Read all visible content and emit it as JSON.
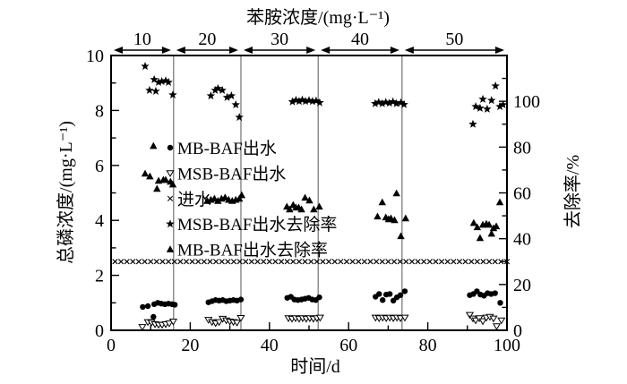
{
  "chart_data": {
    "type": "scatter",
    "title": "",
    "top_axis": {
      "label": "苯胺浓度/(mg·L⁻¹)",
      "segments": [
        {
          "label": "10",
          "day_start": 0,
          "day_end": 15.8
        },
        {
          "label": "20",
          "day_start": 15.8,
          "day_end": 32.8
        },
        {
          "label": "30",
          "day_start": 32.8,
          "day_end": 52.3
        },
        {
          "label": "40",
          "day_start": 52.3,
          "day_end": 73.5
        },
        {
          "label": "50",
          "day_start": 73.5,
          "day_end": 100
        }
      ]
    },
    "bottom_axis": {
      "label": "时间/d",
      "min": 0,
      "max": 100,
      "major_ticks": [
        0,
        20,
        40,
        60,
        80,
        100
      ],
      "minor_ticks": [
        10,
        30,
        50,
        70,
        90
      ]
    },
    "left_axis": {
      "label": "总磷浓度/(mg·L⁻¹)",
      "min": 0,
      "max": 10,
      "major_ticks": [
        0,
        2,
        4,
        6,
        8,
        10
      ],
      "minor_ticks": [
        1,
        3,
        5,
        7,
        9
      ]
    },
    "right_axis": {
      "label": "去除率/%",
      "min": 0,
      "max": 120,
      "major_ticks": [
        0,
        20,
        40,
        60,
        80,
        100
      ],
      "minor_ticks": [
        10,
        30,
        50,
        70,
        90,
        110
      ]
    },
    "phase_boundaries_days": [
      15.8,
      32.8,
      52.3,
      73.5
    ],
    "grid": false,
    "legend": {
      "position": "inside-left",
      "items": [
        {
          "marker": "circle-filled",
          "label": "MB-BAF出水"
        },
        {
          "marker": "triangle-down-open",
          "label": "MSB-BAF出水"
        },
        {
          "marker": "x-cross",
          "label": "进水"
        },
        {
          "marker": "star-filled",
          "label": "MSB-BAF出水去除率"
        },
        {
          "marker": "triangle-up-filled",
          "label": "MB-BAF出水去除率"
        }
      ]
    },
    "series": [
      {
        "name": "进水",
        "marker": "x-cross",
        "axis": "left",
        "uniform": {
          "day_min": 1,
          "day_max": 100,
          "day_step": 1.5,
          "value": 2.5
        }
      },
      {
        "name": "MB-BAF出水",
        "marker": "circle-filled",
        "axis": "left",
        "points": [
          [
            8,
            0.85
          ],
          [
            9.3,
            0.88
          ],
          [
            10.7,
            0.49
          ],
          [
            10.9,
            0.95
          ],
          [
            11.8,
            1.0
          ],
          [
            12.7,
            0.97
          ],
          [
            13.6,
            0.95
          ],
          [
            14.5,
            0.97
          ],
          [
            15.4,
            0.95
          ],
          [
            16.1,
            0.93
          ],
          [
            24.6,
            1.02
          ],
          [
            25.5,
            1.06
          ],
          [
            26.4,
            1.1
          ],
          [
            27.3,
            1.08
          ],
          [
            28.2,
            1.1
          ],
          [
            29.1,
            1.06
          ],
          [
            30,
            1.08
          ],
          [
            30.9,
            1.1
          ],
          [
            31.8,
            1.08
          ],
          [
            32.8,
            1.12
          ],
          [
            44.5,
            1.18
          ],
          [
            45.4,
            1.22
          ],
          [
            46.3,
            1.12
          ],
          [
            47.2,
            1.1
          ],
          [
            48.1,
            1.12
          ],
          [
            49,
            1.15
          ],
          [
            49.9,
            1.18
          ],
          [
            50.8,
            1.12
          ],
          [
            51.7,
            1.1
          ],
          [
            52.6,
            1.2
          ],
          [
            66.8,
            1.22
          ],
          [
            67.7,
            1.32
          ],
          [
            68.6,
            1.1
          ],
          [
            69.5,
            1.3
          ],
          [
            70.4,
            1.32
          ],
          [
            71.3,
            1.08
          ],
          [
            72.2,
            1.2
          ],
          [
            73.1,
            1.28
          ],
          [
            74.2,
            1.42
          ],
          [
            90.6,
            1.28
          ],
          [
            91.5,
            1.32
          ],
          [
            92.4,
            1.42
          ],
          [
            93.3,
            1.3
          ],
          [
            94.2,
            1.26
          ],
          [
            95.1,
            1.35
          ],
          [
            96,
            1.32
          ],
          [
            97,
            1.35
          ],
          [
            98.3,
            1.0
          ]
        ]
      },
      {
        "name": "MSB-BAF出水",
        "marker": "triangle-down-open",
        "axis": "left",
        "points": [
          [
            7.9,
            0.12
          ],
          [
            9.3,
            0.3
          ],
          [
            10.2,
            0.28
          ],
          [
            11.1,
            0.22
          ],
          [
            12,
            0.2
          ],
          [
            12.9,
            0.2
          ],
          [
            13.8,
            0.22
          ],
          [
            14.7,
            0.25
          ],
          [
            15.7,
            0.32
          ],
          [
            24.6,
            0.38
          ],
          [
            25.5,
            0.3
          ],
          [
            26.4,
            0.26
          ],
          [
            27.3,
            0.3
          ],
          [
            28.2,
            0.42
          ],
          [
            29.1,
            0.36
          ],
          [
            30,
            0.32
          ],
          [
            30.9,
            0.3
          ],
          [
            31.8,
            0.28
          ],
          [
            32.8,
            0.45
          ],
          [
            44.8,
            0.44
          ],
          [
            45.7,
            0.42
          ],
          [
            46.6,
            0.44
          ],
          [
            47.5,
            0.42
          ],
          [
            48.4,
            0.44
          ],
          [
            49.3,
            0.42
          ],
          [
            50.2,
            0.44
          ],
          [
            51.1,
            0.42
          ],
          [
            52,
            0.44
          ],
          [
            52.8,
            0.46
          ],
          [
            66.8,
            0.46
          ],
          [
            67.7,
            0.44
          ],
          [
            68.6,
            0.46
          ],
          [
            69.5,
            0.44
          ],
          [
            70.4,
            0.46
          ],
          [
            71.3,
            0.44
          ],
          [
            72.2,
            0.46
          ],
          [
            73.1,
            0.44
          ],
          [
            74.2,
            0.46
          ],
          [
            90.6,
            0.56
          ],
          [
            91.4,
            0.43
          ],
          [
            92.1,
            0.36
          ],
          [
            93,
            0.44
          ],
          [
            93.9,
            0.33
          ],
          [
            94.8,
            0.46
          ],
          [
            95.7,
            0.49
          ],
          [
            96.6,
            0.43
          ],
          [
            97.4,
            0.15
          ],
          [
            98.6,
            0.36
          ]
        ]
      },
      {
        "name": "MSB-BAF出水去除率",
        "marker": "star-filled",
        "axis": "right",
        "points": [
          [
            8.6,
            115.3
          ],
          [
            9.7,
            104.8
          ],
          [
            10.9,
            109.5
          ],
          [
            11.3,
            104.4
          ],
          [
            12,
            108.3
          ],
          [
            12.8,
            108.7
          ],
          [
            13.8,
            109
          ],
          [
            14.5,
            108.3
          ],
          [
            15.6,
            102.8
          ],
          [
            25.2,
            102.4
          ],
          [
            26.3,
            104.8
          ],
          [
            27,
            105.6
          ],
          [
            28.1,
            104.8
          ],
          [
            29.3,
            101.7
          ],
          [
            30.4,
            102.4
          ],
          [
            31.5,
            98.5
          ],
          [
            32.4,
            93
          ],
          [
            45.8,
            99.8
          ],
          [
            46.7,
            100.5
          ],
          [
            47.5,
            100
          ],
          [
            48.3,
            100.6
          ],
          [
            49.1,
            100
          ],
          [
            50,
            100.4
          ],
          [
            50.9,
            100
          ],
          [
            51.8,
            100.2
          ],
          [
            52.7,
            99.4
          ],
          [
            66.7,
            99
          ],
          [
            67.6,
            99.6
          ],
          [
            68.5,
            99
          ],
          [
            69.4,
            99.6
          ],
          [
            70.3,
            99.2
          ],
          [
            71.2,
            99.8
          ],
          [
            72.1,
            99
          ],
          [
            73.2,
            99.4
          ],
          [
            74,
            98.6
          ],
          [
            91.4,
            90
          ],
          [
            92.1,
            97.7
          ],
          [
            93.2,
            97
          ],
          [
            93.9,
            100.9
          ],
          [
            95,
            96.6
          ],
          [
            96.1,
            100.4
          ],
          [
            97.1,
            106.7
          ],
          [
            98.2,
            97.7
          ],
          [
            99,
            98.5
          ]
        ]
      },
      {
        "name": "MB-BAF出水去除率",
        "marker": "triangle-up-filled",
        "axis": "right",
        "points": [
          [
            8.6,
            68.4
          ],
          [
            9.8,
            67.2
          ],
          [
            10.7,
            80.5
          ],
          [
            11.6,
            61.8
          ],
          [
            12,
            65.3
          ],
          [
            13.2,
            65.7
          ],
          [
            13.8,
            65.7
          ],
          [
            15,
            64.9
          ],
          [
            15.6,
            63.7
          ],
          [
            24.3,
            56.5
          ],
          [
            25.2,
            57
          ],
          [
            26.1,
            57.5
          ],
          [
            27,
            56.5
          ],
          [
            27.9,
            57.5
          ],
          [
            28.8,
            58
          ],
          [
            29.7,
            57
          ],
          [
            30.6,
            56.5
          ],
          [
            31.5,
            57
          ],
          [
            32.4,
            57.5
          ],
          [
            33,
            59
          ],
          [
            44.4,
            54
          ],
          [
            45.1,
            52.8
          ],
          [
            46,
            54.7
          ],
          [
            46.7,
            53.6
          ],
          [
            47.4,
            53.6
          ],
          [
            48.1,
            52.8
          ],
          [
            49,
            57.9
          ],
          [
            50.1,
            56.7
          ],
          [
            51.2,
            52.8
          ],
          [
            52.6,
            54
          ],
          [
            67.3,
            49.7
          ],
          [
            68.5,
            55.9
          ],
          [
            69.4,
            49.3
          ],
          [
            70.1,
            48.5
          ],
          [
            70.7,
            48.9
          ],
          [
            71.6,
            48.1
          ],
          [
            72.1,
            59.8
          ],
          [
            73.2,
            41.1
          ],
          [
            74.4,
            48.9
          ],
          [
            91.6,
            46.9
          ],
          [
            92.5,
            45
          ],
          [
            93.2,
            40.3
          ],
          [
            93.9,
            46.1
          ],
          [
            94.8,
            46.5
          ],
          [
            95.5,
            46.1
          ],
          [
            96.1,
            42.2
          ],
          [
            96.6,
            44.6
          ],
          [
            97.3,
            45.4
          ],
          [
            98.2,
            55.9
          ]
        ]
      }
    ],
    "colors": {
      "data": "#000000",
      "phase_divider": "#555555",
      "background": "#ffffff"
    }
  }
}
